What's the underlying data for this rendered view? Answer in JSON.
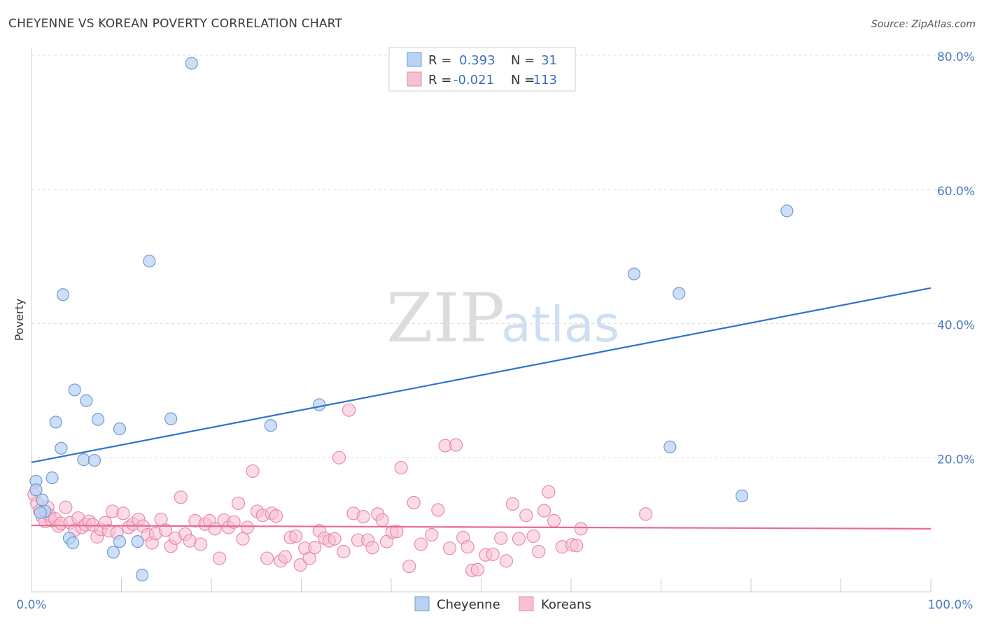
{
  "header": {
    "title": "CHEYENNE VS KOREAN POVERTY CORRELATION CHART",
    "source": "Source: ZipAtlas.com"
  },
  "watermark": {
    "zip": "ZIP",
    "atlas": "atlas"
  },
  "legend": {
    "r_label": "R =",
    "n_label": "N =",
    "rows": [
      {
        "name": "Cheyenne",
        "r": "0.393",
        "n": "31"
      },
      {
        "name": "Koreans",
        "r": "-0.021",
        "n": "113"
      }
    ]
  },
  "colors": {
    "cheyenne_fill": "#b7d2f2",
    "cheyenne_stroke": "#6f9bd6",
    "cheyenne_line": "#2e74cc",
    "koreans_fill": "#f8bfd2",
    "koreans_stroke": "#e989aa",
    "koreans_line": "#e86a94",
    "axis_text": "#4a7cc4",
    "grid": "#dddddd"
  },
  "chart_data": {
    "type": "scatter",
    "title": "CHEYENNE VS KOREAN POVERTY CORRELATION CHART",
    "xlabel": "",
    "ylabel": "Poverty",
    "xlim": [
      0,
      100
    ],
    "ylim": [
      0,
      80
    ],
    "x_tick_labels": [
      "0.0%",
      "100.0%"
    ],
    "y_ticks": [
      20,
      40,
      60,
      80
    ],
    "y_tick_labels": [
      "20.0%",
      "40.0%",
      "60.0%",
      "80.0%"
    ],
    "grid": true,
    "legend_position": "top-center",
    "series": [
      {
        "name": "Cheyenne",
        "r": 0.393,
        "n": 31,
        "trend": {
          "x": [
            0,
            100
          ],
          "y": [
            19.3,
            45.3
          ]
        },
        "points": [
          [
            0.5,
            16.5
          ],
          [
            0.5,
            15.2
          ],
          [
            1.2,
            13.7
          ],
          [
            1.5,
            12.0
          ],
          [
            2.3,
            17.0
          ],
          [
            2.7,
            25.3
          ],
          [
            3.3,
            21.4
          ],
          [
            3.5,
            44.3
          ],
          [
            4.2,
            8.0
          ],
          [
            4.6,
            7.3
          ],
          [
            4.8,
            30.1
          ],
          [
            5.8,
            19.7
          ],
          [
            6.1,
            28.5
          ],
          [
            7.0,
            19.6
          ],
          [
            7.4,
            25.7
          ],
          [
            9.1,
            5.9
          ],
          [
            9.8,
            7.5
          ],
          [
            9.8,
            24.3
          ],
          [
            11.8,
            7.5
          ],
          [
            12.3,
            2.5
          ],
          [
            13.1,
            49.3
          ],
          [
            15.5,
            25.8
          ],
          [
            17.8,
            78.8
          ],
          [
            26.6,
            24.8
          ],
          [
            32.0,
            27.9
          ],
          [
            67.0,
            47.4
          ],
          [
            71.0,
            21.6
          ],
          [
            72.0,
            44.5
          ],
          [
            79.0,
            14.3
          ],
          [
            84.0,
            56.8
          ],
          [
            1.0,
            11.8
          ]
        ]
      },
      {
        "name": "Koreans",
        "r": -0.021,
        "n": 113,
        "trend": {
          "x": [
            0,
            100
          ],
          "y": [
            9.9,
            9.4
          ]
        },
        "points": [
          [
            0.3,
            14.5
          ],
          [
            0.6,
            13.2
          ],
          [
            0.9,
            12.1
          ],
          [
            1.2,
            11.2
          ],
          [
            1.5,
            10.5
          ],
          [
            1.8,
            12.6
          ],
          [
            2.0,
            11.4
          ],
          [
            2.3,
            10.6
          ],
          [
            2.6,
            10.9
          ],
          [
            3.0,
            9.8
          ],
          [
            3.3,
            10.2
          ],
          [
            3.8,
            12.6
          ],
          [
            4.3,
            10.3
          ],
          [
            4.8,
            9.2
          ],
          [
            5.2,
            11.0
          ],
          [
            5.6,
            9.6
          ],
          [
            6.0,
            10.0
          ],
          [
            6.4,
            10.5
          ],
          [
            6.8,
            10.0
          ],
          [
            7.3,
            8.2
          ],
          [
            7.7,
            9.3
          ],
          [
            8.2,
            10.3
          ],
          [
            8.6,
            9.1
          ],
          [
            9.0,
            12.0
          ],
          [
            9.5,
            8.8
          ],
          [
            10.2,
            11.7
          ],
          [
            10.8,
            9.6
          ],
          [
            11.3,
            10.1
          ],
          [
            11.9,
            10.8
          ],
          [
            12.4,
            9.8
          ],
          [
            12.9,
            8.5
          ],
          [
            13.4,
            7.3
          ],
          [
            13.8,
            8.7
          ],
          [
            14.4,
            10.8
          ],
          [
            14.9,
            9.2
          ],
          [
            15.5,
            6.8
          ],
          [
            16.0,
            8.0
          ],
          [
            16.6,
            14.1
          ],
          [
            17.1,
            8.6
          ],
          [
            17.6,
            7.6
          ],
          [
            18.2,
            10.6
          ],
          [
            18.8,
            7.1
          ],
          [
            19.3,
            10.1
          ],
          [
            19.8,
            10.6
          ],
          [
            20.4,
            9.4
          ],
          [
            20.9,
            5.0
          ],
          [
            21.4,
            10.7
          ],
          [
            21.9,
            9.6
          ],
          [
            22.5,
            10.4
          ],
          [
            23.0,
            13.2
          ],
          [
            23.5,
            7.9
          ],
          [
            24.0,
            9.6
          ],
          [
            24.6,
            18.0
          ],
          [
            25.1,
            12.0
          ],
          [
            25.7,
            11.4
          ],
          [
            26.2,
            5.0
          ],
          [
            26.7,
            11.7
          ],
          [
            27.2,
            11.3
          ],
          [
            27.7,
            4.6
          ],
          [
            28.2,
            5.2
          ],
          [
            28.8,
            8.1
          ],
          [
            29.4,
            8.3
          ],
          [
            29.9,
            4.0
          ],
          [
            30.4,
            6.5
          ],
          [
            30.9,
            5.0
          ],
          [
            31.5,
            6.6
          ],
          [
            32.0,
            9.1
          ],
          [
            32.6,
            8.0
          ],
          [
            33.1,
            7.6
          ],
          [
            33.7,
            7.9
          ],
          [
            34.2,
            20.0
          ],
          [
            34.7,
            6.0
          ],
          [
            35.3,
            27.1
          ],
          [
            35.8,
            11.7
          ],
          [
            36.3,
            7.7
          ],
          [
            36.9,
            11.2
          ],
          [
            37.4,
            7.7
          ],
          [
            37.9,
            6.6
          ],
          [
            38.5,
            11.6
          ],
          [
            39.0,
            10.7
          ],
          [
            39.5,
            7.5
          ],
          [
            40.1,
            8.9
          ],
          [
            40.6,
            9.0
          ],
          [
            41.1,
            18.5
          ],
          [
            42.0,
            3.8
          ],
          [
            42.5,
            13.3
          ],
          [
            43.3,
            7.1
          ],
          [
            44.5,
            8.5
          ],
          [
            45.2,
            12.2
          ],
          [
            46.0,
            21.8
          ],
          [
            46.5,
            6.5
          ],
          [
            47.2,
            21.9
          ],
          [
            48.0,
            8.1
          ],
          [
            48.5,
            6.7
          ],
          [
            49.0,
            3.2
          ],
          [
            49.6,
            3.3
          ],
          [
            50.5,
            5.5
          ],
          [
            51.3,
            5.6
          ],
          [
            52.2,
            8.0
          ],
          [
            52.8,
            4.6
          ],
          [
            53.5,
            13.1
          ],
          [
            54.2,
            7.9
          ],
          [
            55.0,
            11.4
          ],
          [
            55.8,
            8.3
          ],
          [
            56.4,
            6.0
          ],
          [
            57.0,
            12.1
          ],
          [
            57.5,
            14.9
          ],
          [
            58.1,
            10.6
          ],
          [
            59.0,
            6.7
          ],
          [
            60.1,
            7.0
          ],
          [
            60.6,
            6.9
          ],
          [
            61.1,
            9.4
          ],
          [
            68.3,
            11.6
          ]
        ]
      }
    ]
  },
  "bottom_legend": [
    "Cheyenne",
    "Koreans"
  ]
}
